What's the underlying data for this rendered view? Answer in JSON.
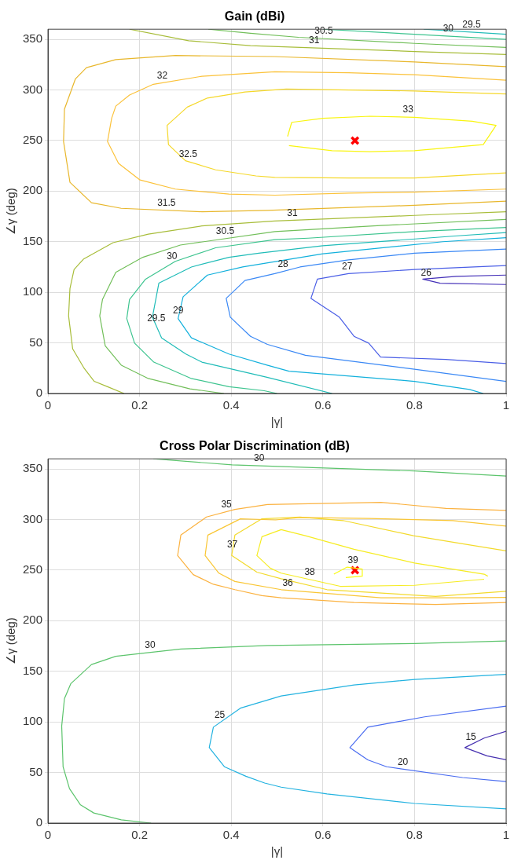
{
  "chart_data": [
    {
      "type": "line",
      "title": "Gain (dBi)",
      "xlabel": "|γ|",
      "ylabel": "∠γ (deg)",
      "xlim": [
        0,
        1
      ],
      "xticks": [
        0,
        0.2,
        0.4,
        0.6,
        0.8,
        1
      ],
      "ylim": [
        0,
        360
      ],
      "yticks": [
        0,
        50,
        100,
        150,
        200,
        250,
        300,
        350
      ],
      "grid": true,
      "legend": false,
      "marker": "none",
      "series": [
        {
          "type": "line",
          "name": "33",
          "color": "#f9f50f",
          "x": [
            0.523,
            0.532,
            0.6,
            0.703,
            0.8,
            0.926,
            0.978,
            0.95,
            0.8,
            0.703,
            0.62,
            0.526
          ],
          "values": [
            254,
            268,
            272,
            274,
            273,
            269,
            265,
            246,
            240,
            239,
            240,
            245
          ]
        },
        {
          "type": "line",
          "name": "32.5",
          "color": "#f5d82a",
          "x": [
            1.0,
            0.8,
            0.656,
            0.495,
            0.454,
            0.366,
            0.3,
            0.263,
            0.26,
            0.304,
            0.348,
            0.43,
            0.52,
            0.8,
            0.89,
            1.0
          ],
          "values": [
            218,
            213,
            213,
            213.5,
            215,
            221,
            230,
            246,
            265,
            283,
            292,
            298,
            300.8,
            299,
            297.5,
            296
          ]
        },
        {
          "type": "line",
          "name": "32",
          "color": "#fbc23a",
          "x": [
            1.0,
            0.8,
            0.656,
            0.495,
            0.395,
            0.278,
            0.201,
            0.154,
            0.13,
            0.139,
            0.148,
            0.178,
            0.23,
            0.336,
            0.495,
            0.656,
            0.8,
            1.0
          ],
          "values": [
            202,
            199,
            198,
            196,
            197,
            202,
            211,
            227.5,
            249,
            272,
            284,
            295,
            305.6,
            313.5,
            318,
            317,
            315,
            309.6
          ]
        },
        {
          "type": "line",
          "name": "31.5",
          "color": "#e8b72c",
          "x": [
            1.0,
            0.8,
            0.479,
            0.336,
            0.16,
            0.095,
            0.048,
            0.034,
            0.036,
            0.06,
            0.084,
            0.148,
            0.278,
            0.495,
            0.8,
            1.0
          ],
          "values": [
            190,
            186,
            181,
            179.6,
            183,
            188.5,
            208.7,
            249,
            281,
            311,
            322,
            330,
            334,
            333,
            327.7,
            323
          ]
        },
        {
          "type": "line",
          "name": "31",
          "color": "#a8bd3a",
          "x": [
            0.178,
            0.307,
            0.442,
            0.8,
            1.0
          ],
          "values": [
            360,
            348.6,
            343.8,
            338,
            335
          ]
        },
        {
          "type": "line",
          "name": "31",
          "color": "#a8bd3a",
          "x": [
            0.166,
            0.13,
            0.101,
            0.078,
            0.054,
            0.045,
            0.048,
            0.057,
            0.078,
            0.142,
            0.219,
            0.336,
            0.495,
            0.8,
            1.0
          ],
          "values": [
            0,
            6.7,
            12,
            25.6,
            44,
            76.7,
            103.7,
            122.5,
            133,
            149,
            157.5,
            165.6,
            170.4,
            176,
            179.6
          ]
        },
        {
          "type": "line",
          "name": "30.5",
          "color": "#72bf5a",
          "x": [
            0.35,
            0.442,
            0.547,
            0.8,
            1.0
          ],
          "values": [
            360,
            356,
            352,
            346,
            342
          ]
        },
        {
          "type": "line",
          "name": "30.5",
          "color": "#72bf5a",
          "x": [
            0.384,
            0.31,
            0.219,
            0.16,
            0.125,
            0.113,
            0.119,
            0.148,
            0.207,
            0.289,
            0.495,
            0.726,
            1.0
          ],
          "values": [
            0,
            4.6,
            14.8,
            28,
            47,
            76.7,
            92.9,
            119.8,
            134.6,
            146.7,
            160,
            166,
            172
          ]
        },
        {
          "type": "line",
          "name": "30",
          "color": "#3dc48f",
          "x": [
            0.6,
            0.8,
            1.0
          ],
          "values": [
            360,
            355,
            350
          ]
        },
        {
          "type": "line",
          "name": "30",
          "color": "#3dc48f",
          "x": [
            0.5,
            0.472,
            0.395,
            0.313,
            0.231,
            0.189,
            0.172,
            0.178,
            0.213,
            0.278,
            0.366,
            0.495,
            0.568,
            0.8,
            1.0
          ],
          "values": [
            0,
            2.7,
            6.7,
            14.8,
            31,
            49.8,
            74,
            92.9,
            113,
            130.6,
            144,
            152,
            153.5,
            160,
            164
          ]
        },
        {
          "type": "line",
          "name": "29.5",
          "color": "#20bcb8",
          "x": [
            0.82,
            1.0
          ],
          "values": [
            360,
            355
          ]
        },
        {
          "type": "line",
          "name": "29.5",
          "color": "#20bcb8",
          "x": [
            0.62,
            0.478,
            0.336,
            0.301,
            0.248,
            0.228,
            0.242,
            0.313,
            0.395,
            0.46,
            0.6,
            0.9,
            1.0
          ],
          "values": [
            0,
            16,
            31,
            39,
            55,
            75.4,
            109,
            125,
            134.6,
            138.6,
            146,
            156,
            159
          ]
        },
        {
          "type": "line",
          "name": "29",
          "color": "#12b0dc",
          "x": [
            0.95,
            0.92,
            0.8,
            0.526,
            0.478,
            0.395,
            0.313,
            0.284,
            0.295,
            0.348,
            0.425,
            0.6,
            0.862,
            1.0
          ],
          "values": [
            0,
            4,
            12,
            22,
            28,
            39,
            55,
            74,
            95.6,
            117,
            125,
            138,
            150,
            154
          ]
        },
        {
          "type": "line",
          "name": "28",
          "color": "#3a88f5",
          "x": [
            1.0,
            0.8,
            0.562,
            0.479,
            0.442,
            0.398,
            0.389,
            0.43,
            0.495,
            0.55,
            0.656,
            0.8,
            1.0
          ],
          "values": [
            12,
            24,
            37.7,
            48.5,
            56.5,
            75.4,
            94,
            111.7,
            118.5,
            125,
            132,
            138.7,
            142.7
          ]
        },
        {
          "type": "line",
          "name": "27",
          "color": "#4a5ee6",
          "x": [
            1.0,
            0.8,
            0.656,
            0.588,
            0.574,
            0.636,
            0.668,
            0.7,
            0.726,
            0.868,
            1.0
          ],
          "values": [
            126.5,
            122.5,
            118.5,
            113,
            94,
            75.4,
            56.5,
            49.8,
            36,
            33.6,
            29.6
          ]
        },
        {
          "type": "line",
          "name": "26",
          "color": "#4430b8",
          "x": [
            1.0,
            0.891,
            0.818,
            0.856,
            1.0
          ],
          "values": [
            117,
            115.8,
            113,
            109,
            107.7
          ]
        },
        {
          "type": "scatter",
          "marker": "cross",
          "color": "#ff0000",
          "x": [
            0.67
          ],
          "values": [
            250
          ]
        }
      ]
    },
    {
      "type": "line",
      "title": "Cross Polar Discrimination (dB)",
      "xlabel": "|γ|",
      "ylabel": "∠γ (deg)",
      "xlim": [
        0,
        1
      ],
      "xticks": [
        0,
        0.2,
        0.4,
        0.6,
        0.8,
        1
      ],
      "ylim": [
        0,
        360
      ],
      "yticks": [
        0,
        50,
        100,
        150,
        200,
        250,
        300,
        350
      ],
      "grid": true,
      "legend": false,
      "marker": "none",
      "series": [
        {
          "type": "line",
          "name": "30",
          "color": "#5cc46c",
          "x": [
            0.23,
            0.402,
            0.502,
            0.8,
            1.0
          ],
          "values": [
            360,
            354,
            352.5,
            348,
            343
          ]
        },
        {
          "type": "line",
          "name": "30",
          "color": "#5cc46c",
          "x": [
            0.225,
            0.16,
            0.1,
            0.071,
            0.047,
            0.033,
            0.03,
            0.036,
            0.05,
            0.095,
            0.148,
            0.201,
            0.29,
            0.479,
            0.8,
            1.0
          ],
          "values": [
            0,
            3.2,
            10,
            18,
            34,
            55.7,
            96,
            123,
            137.9,
            156.7,
            164.8,
            167.5,
            172,
            175.5,
            177.5,
            180
          ]
        },
        {
          "type": "line",
          "name": "35",
          "color": "#fbb240",
          "x": [
            1.0,
            0.846,
            0.668,
            0.509,
            0.467,
            0.408,
            0.361,
            0.317,
            0.283,
            0.29,
            0.346,
            0.408,
            0.479,
            0.727,
            0.869,
            1.0
          ],
          "values": [
            218,
            216,
            218,
            222.7,
            224.8,
            230.7,
            236,
            245.6,
            264.4,
            284.6,
            302.5,
            310,
            314.8,
            317,
            311,
            309
          ]
        },
        {
          "type": "line",
          "name": "36",
          "color": "#f9c635",
          "x": [
            1.0,
            0.905,
            0.727,
            0.509,
            0.408,
            0.373,
            0.343,
            0.349,
            0.42,
            0.497,
            0.55,
            0.7,
            0.884,
            1.0
          ],
          "values": [
            223,
            222.7,
            222.7,
            230.7,
            238.8,
            247,
            264.4,
            284.6,
            300.7,
            299.6,
            302,
            301,
            299,
            293.5
          ]
        },
        {
          "type": "line",
          "name": "37",
          "color": "#f3da2c",
          "x": [
            1.0,
            0.846,
            0.609,
            0.509,
            0.456,
            0.401,
            0.408,
            0.467,
            0.55,
            0.644,
            0.798,
            0.905,
            1.0
          ],
          "values": [
            229,
            224,
            230.7,
            241.5,
            248,
            264.4,
            284.6,
            300.7,
            302.4,
            299,
            284,
            276,
            269
          ]
        },
        {
          "type": "line",
          "name": "38",
          "color": "#f6ec22",
          "x": [
            0.96,
            0.952,
            0.8,
            0.668,
            0.562,
            0.509,
            0.467,
            0.456,
            0.485,
            0.509,
            0.638,
            0.8,
            0.952
          ],
          "values": [
            244,
            246,
            257,
            270.6,
            284,
            290,
            283,
            264.4,
            252,
            247,
            234,
            235,
            241
          ]
        },
        {
          "type": "line",
          "name": "39",
          "color": "#f9fa12",
          "x": [
            0.624,
            0.653,
            0.686,
            0.686,
            0.65
          ],
          "values": [
            246,
            253,
            251,
            244,
            242.7
          ]
        },
        {
          "type": "line",
          "name": "25",
          "color": "#22b2e0",
          "x": [
            1.0,
            0.8,
            0.609,
            0.509,
            0.473,
            0.432,
            0.385,
            0.352,
            0.361,
            0.42,
            0.509,
            0.668,
            0.8,
            1.0
          ],
          "values": [
            14,
            19.4,
            28.8,
            35.5,
            39.6,
            46.3,
            55.7,
            74.6,
            94.8,
            113.6,
            125.7,
            136.5,
            142,
            147
          ]
        },
        {
          "type": "line",
          "name": "20",
          "color": "#4a6cf0",
          "x": [
            1.0,
            0.822,
            0.698,
            0.659,
            0.698,
            0.739,
            0.905,
            1.0
          ],
          "values": [
            115.5,
            105,
            94.8,
            74.6,
            62.5,
            55.7,
            45,
            41
          ]
        },
        {
          "type": "line",
          "name": "15",
          "color": "#4630b0",
          "x": [
            1.0,
            0.952,
            0.91,
            0.958,
            1.0
          ],
          "values": [
            90.7,
            84,
            74.6,
            66.5,
            62.5
          ]
        },
        {
          "type": "scatter",
          "marker": "cross",
          "color": "#ff0000",
          "x": [
            0.67
          ],
          "values": [
            250
          ]
        }
      ]
    }
  ]
}
